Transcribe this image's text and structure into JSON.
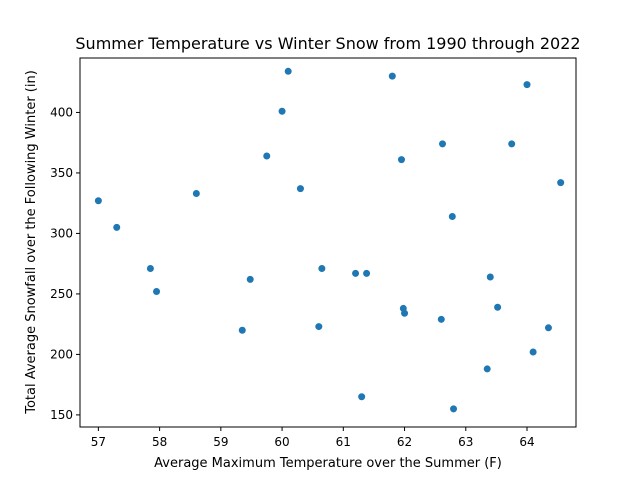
{
  "chart_data": {
    "type": "scatter",
    "title": "Summer Temperature vs Winter Snow from 1990 through 2022",
    "xlabel": "Average Maximum Temperature over the Summer (F)",
    "ylabel": "Total Average Snowfall over the Following Winter (in)",
    "xlim": [
      56.7,
      64.8
    ],
    "ylim": [
      140,
      445
    ],
    "xticks": [
      57,
      58,
      59,
      60,
      61,
      62,
      63,
      64
    ],
    "yticks": [
      150,
      200,
      250,
      300,
      350,
      400
    ],
    "grid": false,
    "point_color": "#1f77b4",
    "points": [
      {
        "x": 57.0,
        "y": 327
      },
      {
        "x": 57.3,
        "y": 305
      },
      {
        "x": 57.85,
        "y": 271
      },
      {
        "x": 57.95,
        "y": 252
      },
      {
        "x": 58.6,
        "y": 333
      },
      {
        "x": 59.35,
        "y": 220
      },
      {
        "x": 59.48,
        "y": 262
      },
      {
        "x": 59.75,
        "y": 364
      },
      {
        "x": 60.0,
        "y": 401
      },
      {
        "x": 60.1,
        "y": 434
      },
      {
        "x": 60.3,
        "y": 337
      },
      {
        "x": 60.6,
        "y": 223
      },
      {
        "x": 60.65,
        "y": 271
      },
      {
        "x": 61.2,
        "y": 267
      },
      {
        "x": 61.3,
        "y": 165
      },
      {
        "x": 61.38,
        "y": 267
      },
      {
        "x": 61.8,
        "y": 430
      },
      {
        "x": 61.95,
        "y": 361
      },
      {
        "x": 61.98,
        "y": 238
      },
      {
        "x": 62.0,
        "y": 234
      },
      {
        "x": 62.6,
        "y": 229
      },
      {
        "x": 62.62,
        "y": 374
      },
      {
        "x": 62.78,
        "y": 314
      },
      {
        "x": 62.8,
        "y": 155
      },
      {
        "x": 63.35,
        "y": 188
      },
      {
        "x": 63.4,
        "y": 264
      },
      {
        "x": 63.52,
        "y": 239
      },
      {
        "x": 63.75,
        "y": 374
      },
      {
        "x": 64.0,
        "y": 423
      },
      {
        "x": 64.1,
        "y": 202
      },
      {
        "x": 64.35,
        "y": 222
      },
      {
        "x": 64.55,
        "y": 342
      }
    ]
  }
}
